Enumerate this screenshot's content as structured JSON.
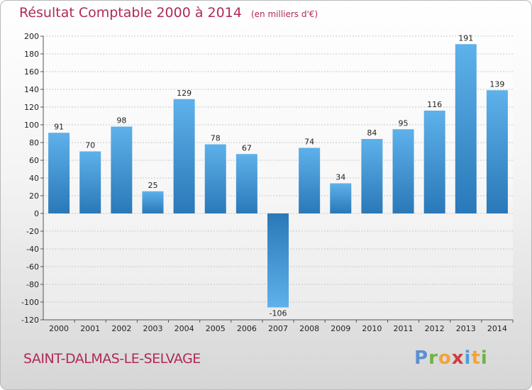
{
  "header": {
    "title": "Résultat Comptable 2000 à 2014",
    "subtitle": "(en milliers d'€)"
  },
  "footer": {
    "commune": "SAINT-DALMAS-LE-SELVAGE",
    "logo": "Proxiti"
  },
  "colors": {
    "title": "#b02a55",
    "bar_light": "#5eb1ea",
    "bar_dark": "#2a78b8",
    "grid": "#c8c8c8"
  },
  "chart_data": {
    "type": "bar",
    "title": "Résultat Comptable 2000 à 2014",
    "subtitle": "(en milliers d'€)",
    "xlabel": "",
    "ylabel": "",
    "categories": [
      "2000",
      "2001",
      "2002",
      "2003",
      "2004",
      "2005",
      "2006",
      "2007",
      "2008",
      "2009",
      "2010",
      "2011",
      "2012",
      "2013",
      "2014"
    ],
    "values": [
      91,
      70,
      98,
      25,
      129,
      78,
      67,
      -106,
      74,
      34,
      84,
      95,
      116,
      191,
      139
    ],
    "data_labels": [
      "91",
      "70",
      "98",
      "25",
      "129",
      "78",
      "67",
      "-106",
      "74",
      "34",
      "84",
      "95",
      "116",
      "191",
      "139"
    ],
    "ylim": [
      -120,
      200
    ],
    "yticks": [
      -120,
      -100,
      -80,
      -60,
      -40,
      -20,
      0,
      20,
      40,
      60,
      80,
      100,
      120,
      140,
      160,
      180,
      200
    ],
    "ytick_labels": [
      "-120",
      "-100",
      "-80",
      "-60",
      "-40",
      "-20",
      "0",
      "20",
      "40",
      "60",
      "80",
      "100",
      "120",
      "140",
      "160",
      "180",
      "200"
    ],
    "grid": true
  }
}
